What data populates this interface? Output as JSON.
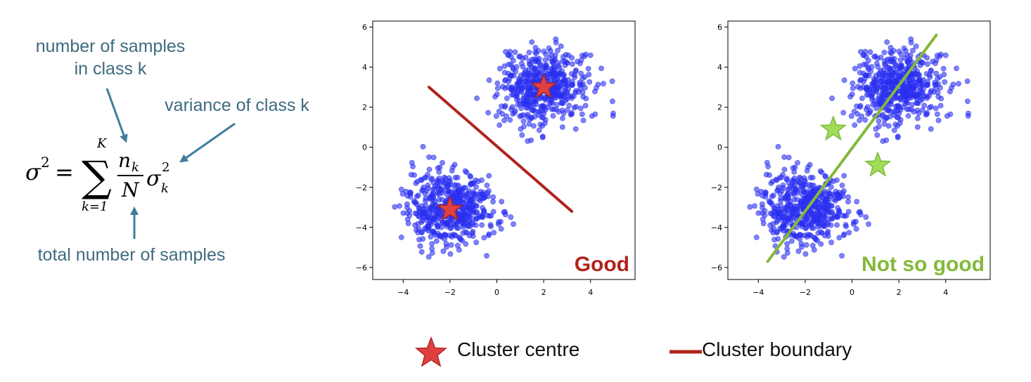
{
  "annotations": {
    "samples_in_class_line1": "number of samples",
    "samples_in_class_line2": "in class k",
    "variance_of_class": "variance of class k",
    "total_samples": "total number of samples"
  },
  "formula": {
    "lhs": "σ",
    "lhs_sup": "2",
    "equals": "=",
    "sum_symbol": "∑",
    "sum_upper": "K",
    "sum_lower": "k=1",
    "numerator": "n",
    "numerator_sub": "k",
    "denominator": "N",
    "rhs": "σ",
    "rhs_sub": "k",
    "rhs_sup": "2"
  },
  "legend": {
    "centre_label": "Cluster centre",
    "boundary_label": "Cluster boundary"
  },
  "colors": {
    "points": "#2a2ff0",
    "good_boundary": "#b0231c",
    "good_text": "#b0231c",
    "centre_star": "#e04040",
    "bad_boundary": "#84b83a",
    "bad_text": "#84b83a",
    "bad_star": "#9fdc58",
    "annotation": "#3f6b80"
  },
  "chart_data": [
    {
      "type": "scatter",
      "xlim": [
        -5.3,
        5.9
      ],
      "ylim": [
        -6.6,
        6.3
      ],
      "xticks": [
        -4,
        -2,
        0,
        2,
        4
      ],
      "yticks": [
        -6,
        -4,
        -2,
        0,
        2,
        4,
        6
      ],
      "clusters": [
        {
          "center": [
            2,
            3
          ],
          "spread": 0.95,
          "count": 500,
          "seed": 7
        },
        {
          "center": [
            -2,
            -3
          ],
          "spread": 0.95,
          "count": 500,
          "seed": 19
        }
      ],
      "centres": [
        [
          2,
          3
        ],
        [
          -2,
          -3.1
        ]
      ],
      "boundary": [
        [
          -2.9,
          3.0
        ],
        [
          3.2,
          -3.2
        ]
      ],
      "annotation": "Good"
    },
    {
      "type": "scatter",
      "xlim": [
        -5.3,
        5.9
      ],
      "ylim": [
        -6.6,
        6.3
      ],
      "xticks": [
        -4,
        -2,
        0,
        2,
        4
      ],
      "yticks": [
        -6,
        -4,
        -2,
        0,
        2,
        4,
        6
      ],
      "clusters": [
        {
          "center": [
            2,
            3
          ],
          "spread": 0.95,
          "count": 500,
          "seed": 7
        },
        {
          "center": [
            -2,
            -3
          ],
          "spread": 0.95,
          "count": 500,
          "seed": 19
        }
      ],
      "centres": [
        [
          -0.8,
          0.9
        ],
        [
          1.1,
          -0.9
        ]
      ],
      "boundary": [
        [
          -3.6,
          -5.7
        ],
        [
          3.6,
          5.6
        ]
      ],
      "annotation": "Not so good"
    }
  ]
}
